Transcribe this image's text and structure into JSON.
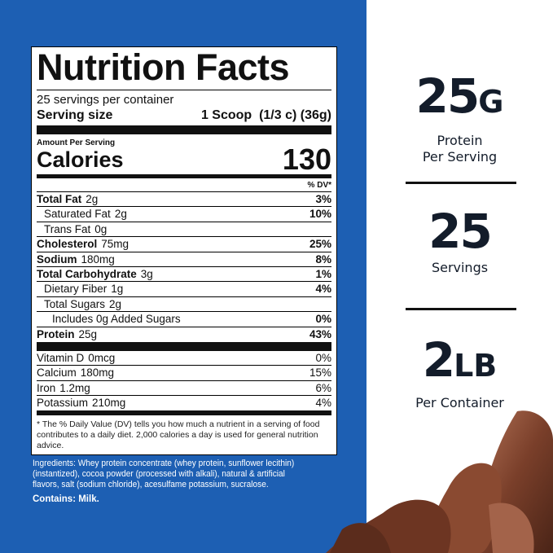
{
  "label": {
    "title": "Nutrition Facts",
    "servings_per_container": "25 servings per container",
    "serving_size_label": "Serving size",
    "serving_size_value": "1 Scoop  (1/3 c) (36g)",
    "amount_per_serving": "Amount Per Serving",
    "calories_label": "Calories",
    "calories_value": "130",
    "dv_header": "% DV*",
    "nutrients": [
      {
        "name": "Total Fat",
        "amount": "2g",
        "dv": "3%"
      },
      {
        "name": "Saturated Fat",
        "amount": "2g",
        "dv": "10%"
      },
      {
        "name": "Trans Fat",
        "amount": "0g",
        "dv": ""
      },
      {
        "name": "Cholesterol",
        "amount": "75mg",
        "dv": "25%"
      },
      {
        "name": "Sodium",
        "amount": "180mg",
        "dv": "8%"
      },
      {
        "name": "Total Carbohydrate",
        "amount": "3g",
        "dv": "1%"
      },
      {
        "name": "Dietary Fiber",
        "amount": "1g",
        "dv": "4%"
      },
      {
        "name": "Total Sugars",
        "amount": "2g",
        "dv": ""
      },
      {
        "name": "Includes 0g Added Sugars",
        "amount": "",
        "dv": "0%"
      },
      {
        "name": "Protein",
        "amount": "25g",
        "dv": "43%"
      }
    ],
    "vitamins": [
      {
        "name": "Vitamin D",
        "amount": "0mcg",
        "dv": "0%"
      },
      {
        "name": "Calcium",
        "amount": "180mg",
        "dv": "15%"
      },
      {
        "name": "Iron",
        "amount": "1.2mg",
        "dv": "6%"
      },
      {
        "name": "Potassium",
        "amount": "210mg",
        "dv": "4%"
      }
    ],
    "footnote": "* The % Daily Value (DV) tells you how much a nutrient in a serving of food contributes to a daily diet. 2,000 calories a day is used for general nutrition advice."
  },
  "ingredients": "Ingredients: Whey protein concentrate (whey protein, sunflower lecithin)(instantized), cocoa powder (processed with alkali), natural & artificial flavors, salt (sodium chloride), acesulfame potassium, sucralose.",
  "contains": "Contains: Milk.",
  "stats": [
    {
      "number": "25",
      "unit": "G",
      "caption1": "Protein",
      "caption2": "Per Serving"
    },
    {
      "number": "25",
      "unit": "",
      "caption1": "Servings",
      "caption2": ""
    },
    {
      "number": "2",
      "unit": "LB",
      "caption1": "Per Container",
      "caption2": ""
    }
  ],
  "colors": {
    "background_blue": "#1d5fb3",
    "text_dark": "#131c2a",
    "chocolate": "#7a3f2a"
  }
}
